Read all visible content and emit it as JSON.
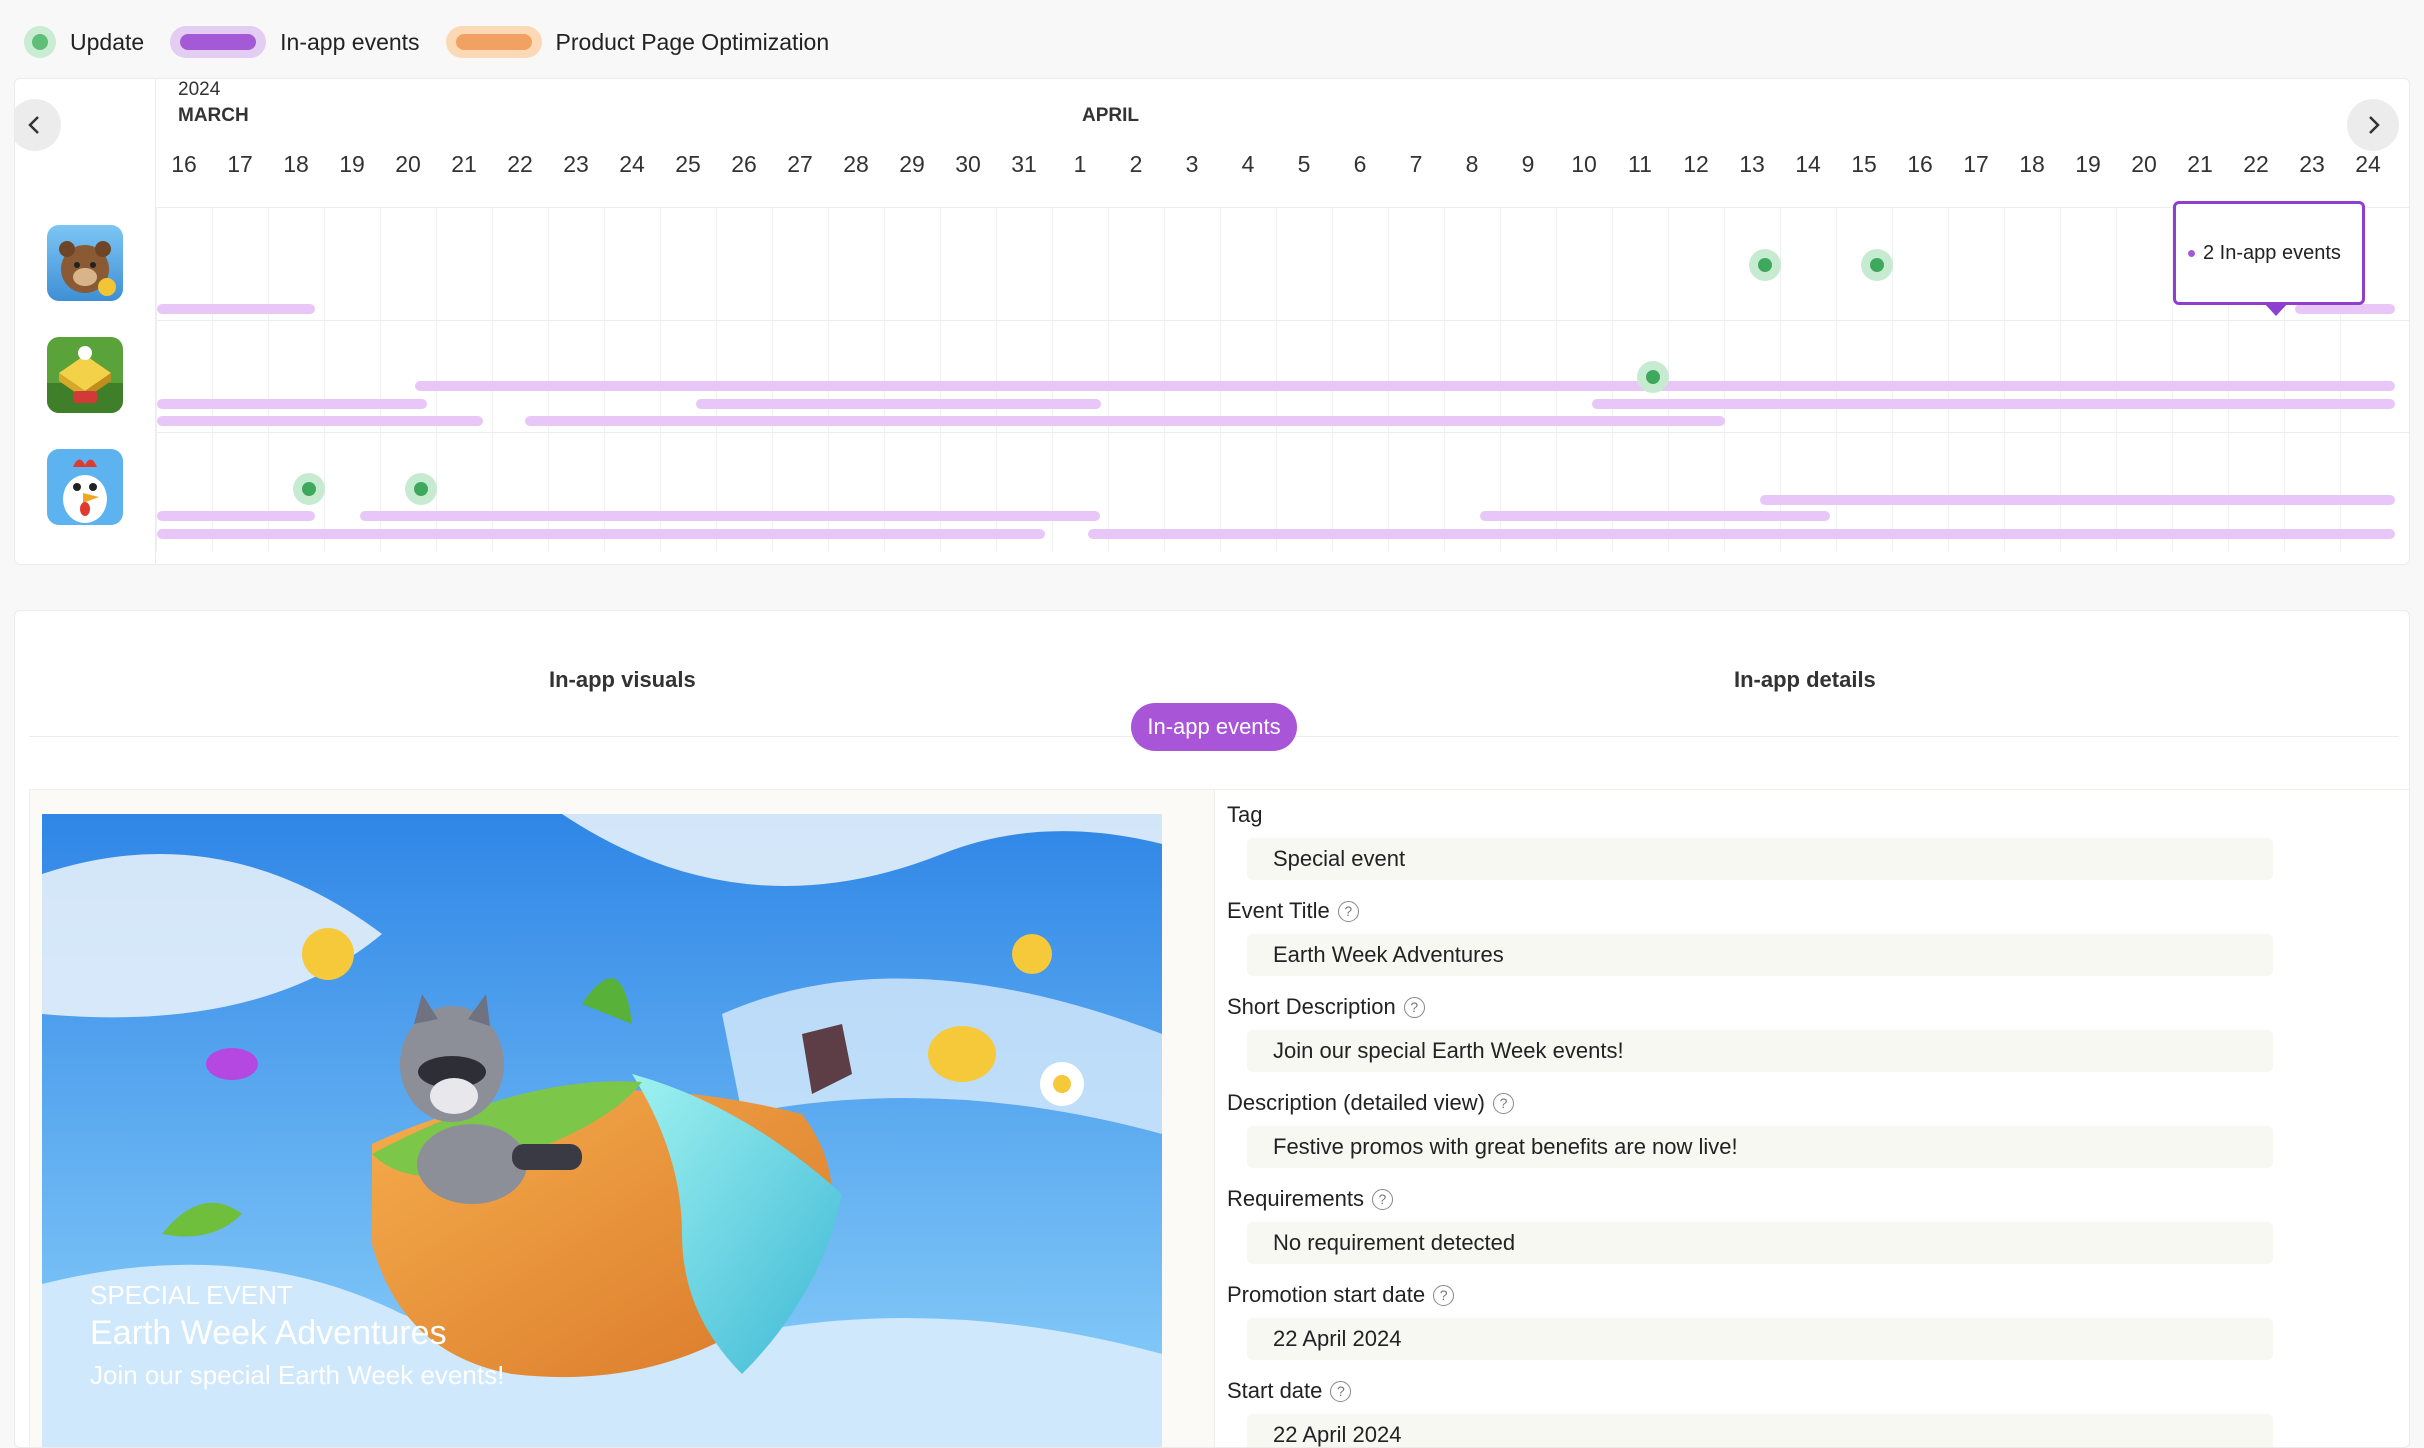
{
  "legend": [
    {
      "label": "Update",
      "kind": "dot",
      "color": "#5fbf78"
    },
    {
      "label": "In-app events",
      "kind": "pill",
      "color": "#a45ad6"
    },
    {
      "label": "Product Page Optimization",
      "kind": "pill",
      "color": "#f1a161"
    }
  ],
  "timeline": {
    "year": "2024",
    "months": [
      "MARCH",
      "APRIL"
    ],
    "days": [
      "16",
      "17",
      "18",
      "19",
      "20",
      "21",
      "22",
      "23",
      "24",
      "25",
      "26",
      "27",
      "28",
      "29",
      "30",
      "31",
      "1",
      "2",
      "3",
      "4",
      "5",
      "6",
      "7",
      "8",
      "9",
      "10",
      "11",
      "12",
      "13",
      "14",
      "15",
      "16",
      "17",
      "18",
      "19",
      "20",
      "21",
      "22",
      "23",
      "24"
    ],
    "prev_icon": "chevron-left-icon",
    "next_icon": "chevron-right-icon",
    "tooltip": "2 In-app events",
    "apps": [
      {
        "icon": "bear-game-app-icon"
      },
      {
        "icon": "farm-game-app-icon"
      },
      {
        "icon": "chicken-game-app-icon"
      }
    ]
  },
  "details": {
    "left_title": "In-app visuals",
    "right_title": "In-app details",
    "tab": "In-app events",
    "visual": {
      "kicker": "SPECIAL EVENT",
      "title": "Earth Week Adventures",
      "description": "Join our special Earth Week events!"
    },
    "fields": [
      {
        "label": "Tag",
        "value": "Special event",
        "help": false
      },
      {
        "label": "Event Title",
        "value": "Earth Week Adventures",
        "help": true
      },
      {
        "label": "Short Description",
        "value": "Join our special Earth Week events!",
        "help": true
      },
      {
        "label": "Description (detailed view)",
        "value": "Festive promos with great benefits are now live!",
        "help": true
      },
      {
        "label": "Requirements",
        "value": "No requirement detected",
        "help": true
      },
      {
        "label": "Promotion start date",
        "value": "22 April 2024",
        "help": true
      },
      {
        "label": "Start date",
        "value": "22 April 2024",
        "help": true
      }
    ]
  }
}
